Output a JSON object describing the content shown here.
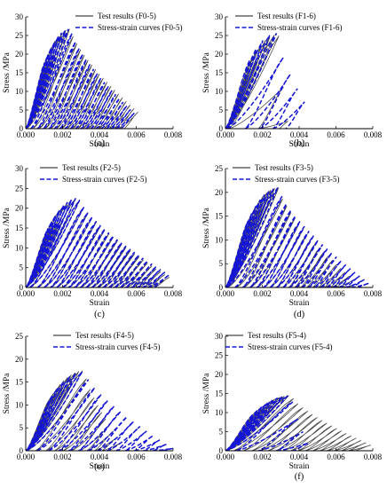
{
  "chart_data": [
    {
      "type": "line",
      "panel_label": "(a)",
      "xlabel": "Strain",
      "ylabel": "Stress /MPa",
      "xlim": [
        0,
        0.008
      ],
      "ylim": [
        0,
        30
      ],
      "xticks": [
        "0.000",
        "0.002",
        "0.004",
        "0.006",
        "0.008"
      ],
      "yticks": [
        "0",
        "5",
        "10",
        "15",
        "20",
        "25",
        "30"
      ],
      "legend": {
        "position": "top-right"
      },
      "series": [
        {
          "name": "Test results (F0-5)",
          "style": "solid",
          "color": "#444444",
          "peak_strain": 0.00245,
          "peak_stress": 26.8,
          "end_strain": 0.0061,
          "end_stress": 4.5,
          "cycles": 26
        },
        {
          "name": "Stress-strain curves (F0-5)",
          "style": "dashed",
          "color": "#1515d6",
          "peak_strain": 0.00245,
          "peak_stress": 26.8,
          "end_strain": 0.0059,
          "end_stress": 4.2,
          "cycles": 26
        }
      ]
    },
    {
      "type": "line",
      "panel_label": "(b)",
      "xlabel": "Strain",
      "ylabel": "Stress /MPa",
      "xlim": [
        0,
        0.008
      ],
      "ylim": [
        0,
        30
      ],
      "xticks": [
        "0.000",
        "0.002",
        "0.004",
        "0.006",
        "0.008"
      ],
      "yticks": [
        "0",
        "5",
        "10",
        "15",
        "20",
        "25",
        "30"
      ],
      "legend": {
        "position": "top-right"
      },
      "series": [
        {
          "name": "Test results (F1-6)",
          "style": "solid",
          "color": "#444444",
          "peak_strain": 0.0029,
          "peak_stress": 25.3,
          "end_strain": 0.0034,
          "end_stress": 2.0,
          "cycles": 10
        },
        {
          "name": "Stress-strain curves (F1-6)",
          "style": "dashed",
          "color": "#1515d6",
          "peak_strain": 0.0028,
          "peak_stress": 25.6,
          "end_strain": 0.0043,
          "end_stress": 7.2,
          "cycles": 9
        }
      ]
    },
    {
      "type": "line",
      "panel_label": "(c)",
      "xlabel": "Strain",
      "ylabel": "Stress /MPa",
      "xlim": [
        0,
        0.008
      ],
      "ylim": [
        0,
        30
      ],
      "xticks": [
        "0.000",
        "0.002",
        "0.004",
        "0.006",
        "0.008"
      ],
      "yticks": [
        "0",
        "5",
        "10",
        "15",
        "20",
        "25",
        "30"
      ],
      "legend": {
        "position": "top-right"
      },
      "series": [
        {
          "name": "Test results (F2-5)",
          "style": "solid",
          "color": "#444444",
          "peak_strain": 0.0029,
          "peak_stress": 22.6,
          "end_strain": 0.0078,
          "end_stress": 2.6,
          "cycles": 30
        },
        {
          "name": "Stress-strain curves (F2-5)",
          "style": "dashed",
          "color": "#1515d6",
          "peak_strain": 0.0029,
          "peak_stress": 22.6,
          "end_strain": 0.0078,
          "end_stress": 3.2,
          "cycles": 30
        }
      ]
    },
    {
      "type": "line",
      "panel_label": "(d)",
      "xlabel": "Strain",
      "ylabel": "Stress /MPa",
      "xlim": [
        0,
        0.008
      ],
      "ylim": [
        0,
        25
      ],
      "xticks": [
        "0.000",
        "0.002",
        "0.004",
        "0.006",
        "0.008"
      ],
      "yticks": [
        "0",
        "5",
        "10",
        "15",
        "20",
        "25"
      ],
      "legend": {
        "position": "top-right"
      },
      "series": [
        {
          "name": "Test results (F3-5)",
          "style": "solid",
          "color": "#444444",
          "peak_strain": 0.0029,
          "peak_stress": 21.0,
          "end_strain": 0.0072,
          "end_stress": 0.8,
          "cycles": 28
        },
        {
          "name": "Stress-strain curves (F3-5)",
          "style": "dashed",
          "color": "#1515d6",
          "peak_strain": 0.0029,
          "peak_stress": 21.0,
          "end_strain": 0.0078,
          "end_stress": 0.9,
          "cycles": 28
        }
      ]
    },
    {
      "type": "line",
      "panel_label": "(e)",
      "xlabel": "Strain",
      "ylabel": "Stress /MPa",
      "xlim": [
        0,
        0.008
      ],
      "ylim": [
        0,
        25
      ],
      "xticks": [
        "0.000",
        "0.002",
        "0.004",
        "0.006",
        "0.008"
      ],
      "yticks": [
        "0",
        "5",
        "10",
        "15",
        "20",
        "25"
      ],
      "legend": {
        "position": "top-right"
      },
      "series": [
        {
          "name": "Test results (F4-5)",
          "style": "solid",
          "color": "#444444",
          "peak_strain": 0.0032,
          "peak_stress": 17.5,
          "end_strain": 0.0052,
          "end_stress": 1.8,
          "cycles": 20
        },
        {
          "name": "Stress-strain curves (F4-5)",
          "style": "dashed",
          "color": "#1515d6",
          "peak_strain": 0.0032,
          "peak_stress": 17.3,
          "end_strain": 0.008,
          "end_stress": 0.5,
          "cycles": 20
        }
      ]
    },
    {
      "type": "line",
      "panel_label": "(f)",
      "xlabel": "Strain",
      "ylabel": "Stress /MPa",
      "xlim": [
        0,
        0.008
      ],
      "ylim": [
        0,
        30
      ],
      "xticks": [
        "0.000",
        "0.002",
        "0.004",
        "0.006",
        "0.008"
      ],
      "yticks": [
        "0",
        "5",
        "10",
        "15",
        "20",
        "25",
        "30"
      ],
      "legend": {
        "position": "top-right"
      },
      "series": [
        {
          "name": "Test results (F5-4)",
          "style": "solid",
          "color": "#444444",
          "peak_strain": 0.0036,
          "peak_stress": 14.5,
          "end_strain": 0.0079,
          "end_stress": 1.5,
          "cycles": 26
        },
        {
          "name": "Stress-strain curves (F5-4)",
          "style": "dashed",
          "color": "#1515d6",
          "peak_strain": 0.0036,
          "peak_stress": 14.5,
          "end_strain": 0.0045,
          "end_stress": 2.0,
          "cycles": 12
        }
      ]
    }
  ]
}
